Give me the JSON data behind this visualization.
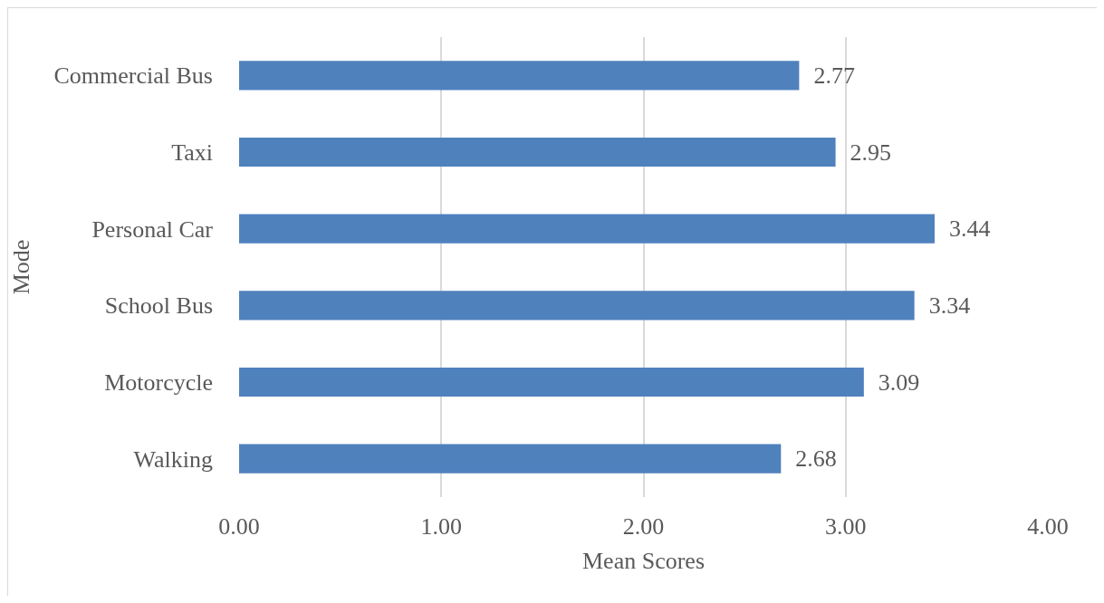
{
  "chart_data": {
    "type": "bar",
    "orientation": "horizontal",
    "xlabel": "Mean Scores",
    "ylabel": "Mode",
    "categories": [
      "Commercial Bus",
      "Taxi",
      "Personal Car",
      "School Bus",
      "Motorcycle",
      "Walking"
    ],
    "values": [
      2.77,
      2.95,
      3.44,
      3.34,
      3.09,
      2.68
    ],
    "color": "#4f81bd",
    "xlim": [
      0,
      4
    ],
    "xticks": [
      {
        "value": 0,
        "label": "0.00"
      },
      {
        "value": 1,
        "label": "1.00"
      },
      {
        "value": 2,
        "label": "2.00"
      },
      {
        "value": 3,
        "label": "3.00"
      },
      {
        "value": 4,
        "label": "4.00"
      }
    ],
    "grid": "x",
    "data_labels": true
  }
}
